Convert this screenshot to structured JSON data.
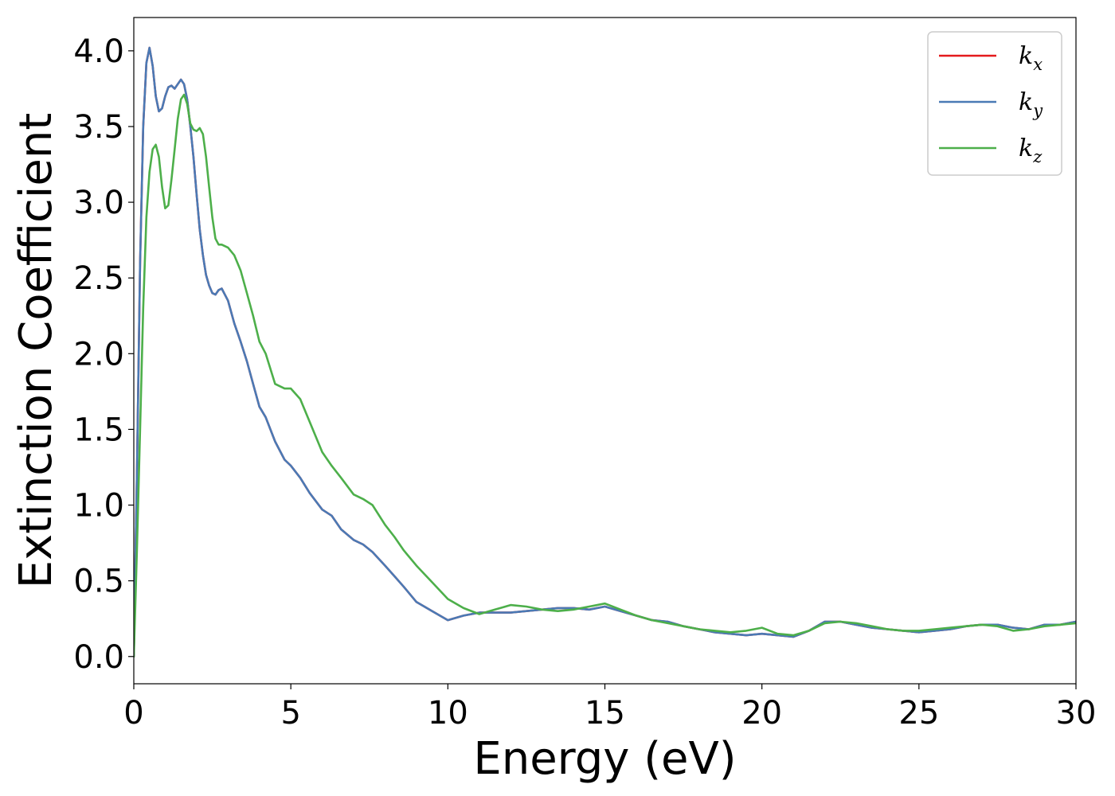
{
  "chart_data": {
    "type": "line",
    "xlabel": "Energy (eV)",
    "ylabel": "Extinction Coefficient",
    "xlim": [
      0,
      30
    ],
    "ylim": [
      -0.18,
      4.22
    ],
    "xticks": [
      0,
      5,
      10,
      15,
      20,
      25,
      30
    ],
    "xtick_labels": [
      "0",
      "5",
      "10",
      "15",
      "20",
      "25",
      "30"
    ],
    "yticks": [
      0.0,
      0.5,
      1.0,
      1.5,
      2.0,
      2.5,
      3.0,
      3.5,
      4.0
    ],
    "ytick_labels": [
      "0.0",
      "0.5",
      "1.0",
      "1.5",
      "2.0",
      "2.5",
      "3.0",
      "3.5",
      "4.0"
    ],
    "grid": false,
    "legend_position": "top-right",
    "series": [
      {
        "name": "k_x",
        "label_base": "k",
        "label_sub": "x",
        "color": "#e41a1c",
        "x": [
          0,
          0.1,
          0.2,
          0.3,
          0.4,
          0.5,
          0.6,
          0.7,
          0.8,
          0.9,
          1.0,
          1.1,
          1.2,
          1.3,
          1.4,
          1.5,
          1.6,
          1.7,
          1.8,
          1.9,
          2.0,
          2.1,
          2.2,
          2.3,
          2.4,
          2.5,
          2.6,
          2.7,
          2.8,
          3.0,
          3.2,
          3.4,
          3.6,
          3.8,
          4.0,
          4.2,
          4.5,
          4.8,
          5.0,
          5.3,
          5.6,
          6.0,
          6.3,
          6.6,
          7.0,
          7.3,
          7.6,
          8.0,
          8.3,
          8.6,
          9.0,
          9.5,
          10.0,
          10.5,
          11.0,
          11.5,
          12.0,
          12.5,
          13.0,
          13.5,
          14.0,
          14.5,
          15.0,
          15.5,
          16.0,
          16.5,
          17.0,
          17.5,
          18.0,
          18.5,
          19.0,
          19.5,
          20.0,
          20.5,
          21.0,
          21.5,
          22.0,
          22.5,
          23.0,
          23.5,
          24.0,
          24.5,
          25.0,
          25.5,
          26.0,
          26.5,
          27.0,
          27.5,
          28.0,
          28.5,
          29.0,
          29.5,
          30.0
        ],
        "y": [
          0,
          1.2,
          2.6,
          3.5,
          3.92,
          4.02,
          3.9,
          3.7,
          3.6,
          3.62,
          3.7,
          3.76,
          3.77,
          3.75,
          3.78,
          3.81,
          3.78,
          3.68,
          3.5,
          3.3,
          3.05,
          2.82,
          2.65,
          2.52,
          2.45,
          2.4,
          2.39,
          2.42,
          2.43,
          2.35,
          2.2,
          2.08,
          1.95,
          1.8,
          1.65,
          1.58,
          1.42,
          1.3,
          1.26,
          1.18,
          1.08,
          0.97,
          0.93,
          0.84,
          0.77,
          0.74,
          0.69,
          0.6,
          0.53,
          0.46,
          0.36,
          0.3,
          0.24,
          0.27,
          0.29,
          0.29,
          0.29,
          0.3,
          0.31,
          0.32,
          0.32,
          0.31,
          0.33,
          0.3,
          0.27,
          0.24,
          0.23,
          0.2,
          0.18,
          0.16,
          0.15,
          0.14,
          0.15,
          0.14,
          0.13,
          0.17,
          0.23,
          0.23,
          0.21,
          0.19,
          0.18,
          0.17,
          0.16,
          0.17,
          0.18,
          0.2,
          0.21,
          0.21,
          0.19,
          0.18,
          0.21,
          0.21,
          0.23
        ]
      },
      {
        "name": "k_y",
        "label_base": "k",
        "label_sub": "y",
        "color": "#4a7ab5",
        "x": [
          0,
          0.1,
          0.2,
          0.3,
          0.4,
          0.5,
          0.6,
          0.7,
          0.8,
          0.9,
          1.0,
          1.1,
          1.2,
          1.3,
          1.4,
          1.5,
          1.6,
          1.7,
          1.8,
          1.9,
          2.0,
          2.1,
          2.2,
          2.3,
          2.4,
          2.5,
          2.6,
          2.7,
          2.8,
          3.0,
          3.2,
          3.4,
          3.6,
          3.8,
          4.0,
          4.2,
          4.5,
          4.8,
          5.0,
          5.3,
          5.6,
          6.0,
          6.3,
          6.6,
          7.0,
          7.3,
          7.6,
          8.0,
          8.3,
          8.6,
          9.0,
          9.5,
          10.0,
          10.5,
          11.0,
          11.5,
          12.0,
          12.5,
          13.0,
          13.5,
          14.0,
          14.5,
          15.0,
          15.5,
          16.0,
          16.5,
          17.0,
          17.5,
          18.0,
          18.5,
          19.0,
          19.5,
          20.0,
          20.5,
          21.0,
          21.5,
          22.0,
          22.5,
          23.0,
          23.5,
          24.0,
          24.5,
          25.0,
          25.5,
          26.0,
          26.5,
          27.0,
          27.5,
          28.0,
          28.5,
          29.0,
          29.5,
          30.0
        ],
        "y": [
          0,
          1.2,
          2.6,
          3.5,
          3.92,
          4.02,
          3.9,
          3.7,
          3.6,
          3.62,
          3.7,
          3.76,
          3.77,
          3.75,
          3.78,
          3.81,
          3.78,
          3.68,
          3.5,
          3.3,
          3.05,
          2.82,
          2.65,
          2.52,
          2.45,
          2.4,
          2.39,
          2.42,
          2.43,
          2.35,
          2.2,
          2.08,
          1.95,
          1.8,
          1.65,
          1.58,
          1.42,
          1.3,
          1.26,
          1.18,
          1.08,
          0.97,
          0.93,
          0.84,
          0.77,
          0.74,
          0.69,
          0.6,
          0.53,
          0.46,
          0.36,
          0.3,
          0.24,
          0.27,
          0.29,
          0.29,
          0.29,
          0.3,
          0.31,
          0.32,
          0.32,
          0.31,
          0.33,
          0.3,
          0.27,
          0.24,
          0.23,
          0.2,
          0.18,
          0.16,
          0.15,
          0.14,
          0.15,
          0.14,
          0.13,
          0.17,
          0.23,
          0.23,
          0.21,
          0.19,
          0.18,
          0.17,
          0.16,
          0.17,
          0.18,
          0.2,
          0.21,
          0.21,
          0.19,
          0.18,
          0.21,
          0.21,
          0.23
        ]
      },
      {
        "name": "k_z",
        "label_base": "k",
        "label_sub": "z",
        "color": "#4daf4a",
        "x": [
          0,
          0.1,
          0.2,
          0.3,
          0.4,
          0.5,
          0.6,
          0.7,
          0.8,
          0.9,
          1.0,
          1.1,
          1.2,
          1.3,
          1.4,
          1.5,
          1.6,
          1.7,
          1.8,
          1.9,
          2.0,
          2.1,
          2.2,
          2.3,
          2.4,
          2.5,
          2.6,
          2.7,
          2.8,
          3.0,
          3.2,
          3.4,
          3.6,
          3.8,
          4.0,
          4.2,
          4.5,
          4.8,
          5.0,
          5.3,
          5.6,
          6.0,
          6.3,
          6.6,
          7.0,
          7.3,
          7.6,
          8.0,
          8.3,
          8.6,
          9.0,
          9.5,
          10.0,
          10.5,
          11.0,
          11.5,
          12.0,
          12.5,
          13.0,
          13.5,
          14.0,
          14.5,
          15.0,
          15.5,
          16.0,
          16.5,
          17.0,
          17.5,
          18.0,
          18.5,
          19.0,
          19.5,
          20.0,
          20.5,
          21.0,
          21.5,
          22.0,
          22.5,
          23.0,
          23.5,
          24.0,
          24.5,
          25.0,
          25.5,
          26.0,
          26.5,
          27.0,
          27.5,
          28.0,
          28.5,
          29.0,
          29.5,
          30.0
        ],
        "y": [
          0,
          0.7,
          1.5,
          2.3,
          2.9,
          3.2,
          3.35,
          3.38,
          3.3,
          3.1,
          2.96,
          2.98,
          3.15,
          3.35,
          3.55,
          3.68,
          3.71,
          3.65,
          3.52,
          3.48,
          3.47,
          3.49,
          3.45,
          3.3,
          3.1,
          2.9,
          2.76,
          2.72,
          2.72,
          2.7,
          2.65,
          2.55,
          2.4,
          2.25,
          2.08,
          2.0,
          1.8,
          1.77,
          1.77,
          1.7,
          1.55,
          1.35,
          1.26,
          1.18,
          1.07,
          1.04,
          1.0,
          0.87,
          0.79,
          0.7,
          0.6,
          0.49,
          0.38,
          0.32,
          0.28,
          0.31,
          0.34,
          0.33,
          0.31,
          0.3,
          0.31,
          0.33,
          0.35,
          0.31,
          0.27,
          0.24,
          0.22,
          0.2,
          0.18,
          0.17,
          0.16,
          0.17,
          0.19,
          0.15,
          0.14,
          0.17,
          0.22,
          0.23,
          0.22,
          0.2,
          0.18,
          0.17,
          0.17,
          0.18,
          0.19,
          0.2,
          0.21,
          0.2,
          0.17,
          0.18,
          0.2,
          0.21,
          0.22
        ]
      }
    ]
  }
}
